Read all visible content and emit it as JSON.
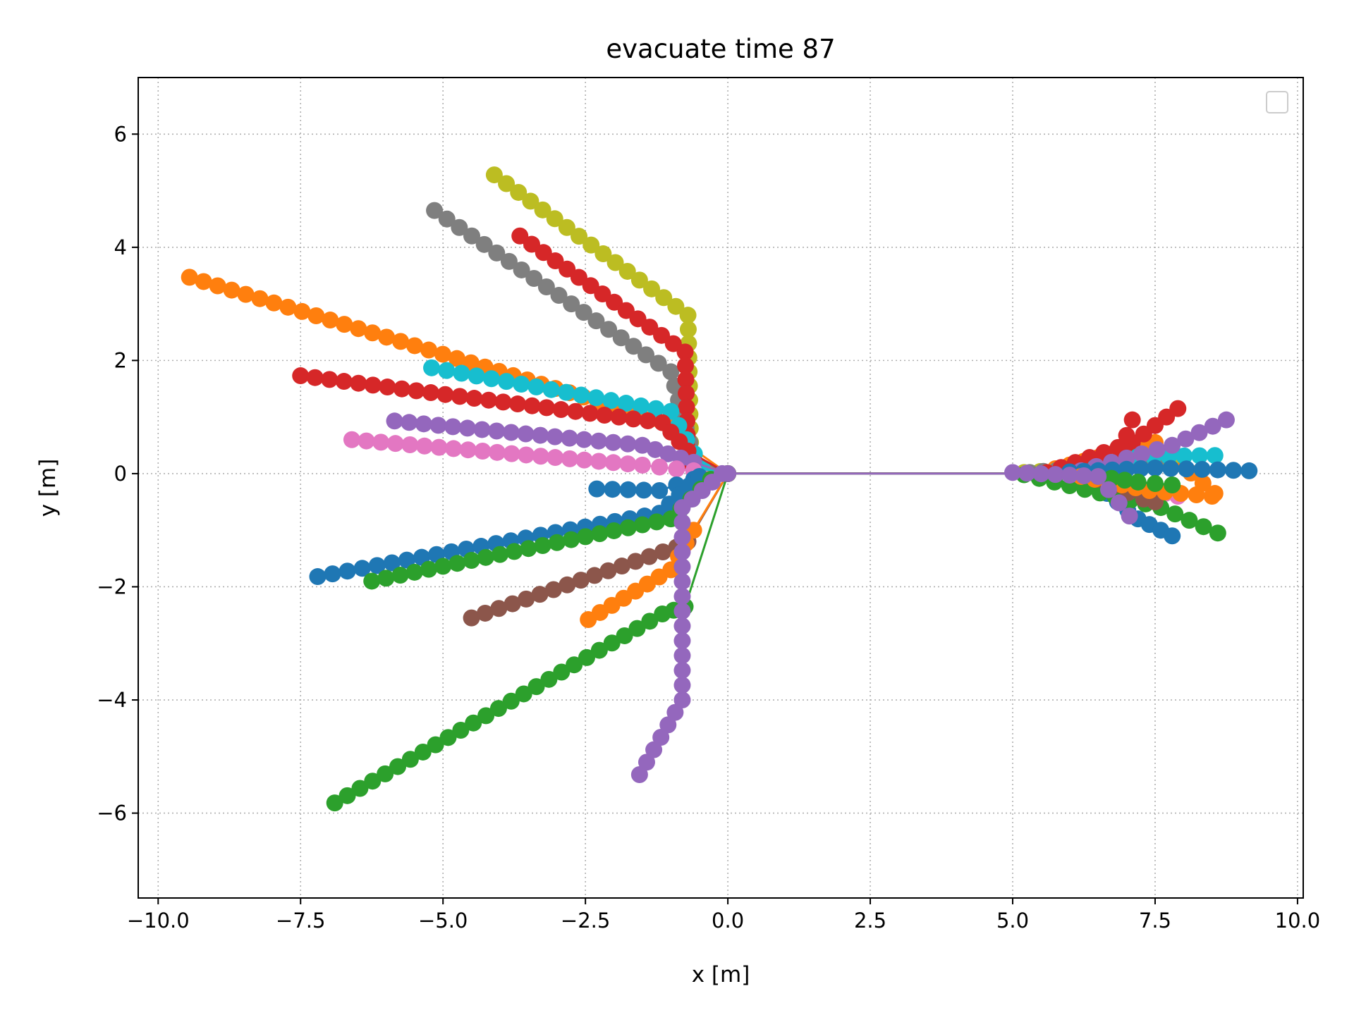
{
  "chart_data": {
    "type": "scatter",
    "title": "evacuate time 87",
    "xlabel": "x [m]",
    "ylabel": "y [m]",
    "xlim": [
      -10.35,
      10.1
    ],
    "ylim": [
      -7.5,
      7.0
    ],
    "xticks": [
      -10.0,
      -7.5,
      -5.0,
      -2.5,
      0.0,
      2.5,
      5.0,
      7.5,
      10.0
    ],
    "xtick_labels": [
      "−10.0",
      "−7.5",
      "−5.0",
      "−2.5",
      "0.0",
      "2.5",
      "5.0",
      "7.5",
      "10.0"
    ],
    "yticks": [
      -6,
      -4,
      -2,
      0,
      2,
      4,
      6
    ],
    "ytick_labels": [
      "−6",
      "−4",
      "−2",
      "0",
      "2",
      "4",
      "6"
    ],
    "grid": true,
    "legend": "upper right (empty)",
    "series": [
      {
        "color": "#ff7f0e",
        "left": [
          [
            -9.45,
            3.47
          ],
          [
            -1.05,
            0.9
          ],
          [
            -0.7,
            0.5
          ]
        ],
        "right": [
          [
            5.5,
            0.02
          ],
          [
            7.5,
            0.55
          ],
          [
            8.55,
            -0.35
          ]
        ]
      },
      {
        "color": "#bcbd22",
        "left": [
          [
            -4.1,
            5.28
          ],
          [
            -0.7,
            2.8
          ],
          [
            -0.65,
            0.3
          ]
        ],
        "right": [
          [
            5.2,
            0.02
          ],
          [
            6.6,
            0.1
          ],
          [
            7.8,
            0.3
          ]
        ]
      },
      {
        "color": "#7f7f7f",
        "left": [
          [
            -5.15,
            4.65
          ],
          [
            -1.0,
            1.8
          ],
          [
            -0.6,
            0.3
          ]
        ],
        "right": [
          [
            5.3,
            0.02
          ],
          [
            6.5,
            0.12
          ],
          [
            7.5,
            0.2
          ]
        ]
      },
      {
        "color": "#d62728",
        "left": [
          [
            -3.65,
            4.2
          ],
          [
            -0.75,
            2.15
          ],
          [
            -0.7,
            0.2
          ]
        ],
        "right": [
          [
            5.6,
            0.02
          ],
          [
            7.1,
            0.55
          ],
          [
            7.9,
            1.15
          ]
        ]
      },
      {
        "color": "#17becf",
        "left": [
          [
            -5.2,
            1.87
          ],
          [
            -1.0,
            1.1
          ],
          [
            -0.45,
            0.1
          ]
        ],
        "right": [
          [
            6.2,
            0.05
          ],
          [
            7.2,
            0.3
          ],
          [
            8.55,
            0.32
          ]
        ]
      },
      {
        "color": "#d62728",
        "left": [
          [
            -7.5,
            1.73
          ],
          [
            -1.15,
            0.9
          ],
          [
            -0.7,
            0.4
          ]
        ],
        "right": [
          [
            6.4,
            0.05
          ],
          [
            6.9,
            0.4
          ],
          [
            7.1,
            0.95
          ]
        ]
      },
      {
        "color": "#9467bd",
        "left": [
          [
            -5.85,
            0.93
          ],
          [
            -1.5,
            0.5
          ],
          [
            -0.6,
            0.2
          ]
        ],
        "right": [
          [
            6.2,
            0.05
          ],
          [
            7.8,
            0.5
          ],
          [
            8.75,
            0.95
          ]
        ]
      },
      {
        "color": "#e377c2",
        "left": [
          [
            -6.6,
            0.6
          ],
          [
            -1.5,
            0.15
          ],
          [
            -0.6,
            0.05
          ]
        ],
        "right": [
          [
            6.0,
            0.02
          ],
          [
            7.0,
            -0.2
          ],
          [
            7.9,
            -0.4
          ]
        ]
      },
      {
        "color": "#1f77b4",
        "left": [
          [
            -2.3,
            -0.27
          ],
          [
            -1.2,
            -0.3
          ],
          [
            -0.6,
            -0.1
          ]
        ],
        "right": [
          [
            6.0,
            0.03
          ],
          [
            7.5,
            0.1
          ],
          [
            9.15,
            0.05
          ]
        ]
      },
      {
        "color": "#1f77b4",
        "left": [
          [
            -7.2,
            -1.82
          ],
          [
            -1.2,
            -0.7
          ],
          [
            -0.5,
            -0.05
          ]
        ],
        "right": [
          [
            6.3,
            -0.05
          ],
          [
            7.2,
            -0.8
          ],
          [
            7.8,
            -1.1
          ]
        ]
      },
      {
        "color": "#2ca02c",
        "left": [
          [
            -6.25,
            -1.9
          ],
          [
            -1.0,
            -0.8
          ],
          [
            -0.3,
            -0.1
          ]
        ],
        "right": [
          [
            5.2,
            -0.02
          ],
          [
            7.6,
            -0.6
          ],
          [
            8.6,
            -1.05
          ]
        ]
      },
      {
        "color": "#8c564b",
        "left": [
          [
            -4.5,
            -2.55
          ],
          [
            -0.9,
            -1.3
          ],
          [
            -0.7,
            -1.2
          ]
        ],
        "right": [
          [
            6.5,
            -0.1
          ],
          [
            7.3,
            -0.45
          ],
          [
            7.5,
            -0.5
          ]
        ]
      },
      {
        "color": "#ff7f0e",
        "left": [
          [
            -2.45,
            -2.58
          ],
          [
            -1.0,
            -1.7
          ],
          [
            -0.6,
            -1.0
          ]
        ],
        "right": [
          [
            6.2,
            -0.05
          ],
          [
            7.4,
            -0.3
          ],
          [
            8.5,
            -0.4
          ]
        ]
      },
      {
        "color": "#2ca02c",
        "left": [
          [
            -6.9,
            -5.82
          ],
          [
            -1.15,
            -2.48
          ],
          [
            -0.75,
            -2.35
          ]
        ],
        "right": [
          [
            6.5,
            -0.05
          ],
          [
            7.2,
            -0.15
          ],
          [
            7.8,
            -0.2
          ]
        ]
      },
      {
        "color": "#9467bd",
        "left": [
          [
            -1.55,
            -5.32
          ],
          [
            -0.8,
            -4.0
          ],
          [
            -0.8,
            -0.6
          ],
          [
            -0.1,
            0.0
          ]
        ],
        "right": [
          [
            5.0,
            0.02
          ],
          [
            6.5,
            -0.05
          ],
          [
            7.05,
            -0.75
          ]
        ]
      }
    ]
  }
}
